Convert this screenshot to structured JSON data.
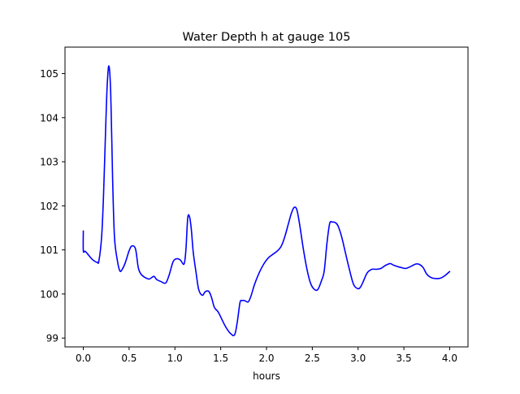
{
  "chart_data": {
    "type": "line",
    "title": "Water Depth h at gauge 105",
    "xlabel": "hours",
    "ylabel": "",
    "xlim": [
      -0.2,
      4.2
    ],
    "ylim": [
      98.8,
      105.6
    ],
    "x_ticks": [
      0.0,
      0.5,
      1.0,
      1.5,
      2.0,
      2.5,
      3.0,
      3.5,
      4.0
    ],
    "x_tick_labels": [
      "0.0",
      "0.5",
      "1.0",
      "1.5",
      "2.0",
      "2.5",
      "3.0",
      "3.5",
      "4.0"
    ],
    "y_ticks": [
      99,
      100,
      101,
      102,
      103,
      104,
      105
    ],
    "y_tick_labels": [
      "99",
      "100",
      "101",
      "102",
      "103",
      "104",
      "105"
    ],
    "grid": false,
    "legend": "none",
    "series": [
      {
        "color": "#0000ff",
        "x": [
          0.0,
          0.0,
          0.02,
          0.05,
          0.1,
          0.15,
          0.17,
          0.2,
          0.22,
          0.24,
          0.26,
          0.28,
          0.3,
          0.32,
          0.34,
          0.37,
          0.4,
          0.43,
          0.46,
          0.5,
          0.53,
          0.57,
          0.6,
          0.63,
          0.67,
          0.72,
          0.77,
          0.8,
          0.85,
          0.9,
          0.94,
          0.98,
          1.02,
          1.06,
          1.1,
          1.12,
          1.14,
          1.16,
          1.18,
          1.2,
          1.23,
          1.26,
          1.3,
          1.33,
          1.37,
          1.4,
          1.43,
          1.47,
          1.5,
          1.55,
          1.6,
          1.65,
          1.68,
          1.71,
          1.73,
          1.76,
          1.8,
          1.83,
          1.87,
          1.92,
          1.97,
          2.02,
          2.07,
          2.12,
          2.16,
          2.2,
          2.24,
          2.27,
          2.3,
          2.33,
          2.36,
          2.4,
          2.44,
          2.48,
          2.52,
          2.56,
          2.6,
          2.63,
          2.66,
          2.69,
          2.72,
          2.75,
          2.78,
          2.82,
          2.86,
          2.9,
          2.95,
          3.0,
          3.03,
          3.06,
          3.1,
          3.15,
          3.2,
          3.25,
          3.3,
          3.35,
          3.38,
          3.42,
          3.47,
          3.52,
          3.58,
          3.63,
          3.67,
          3.71,
          3.75,
          3.8,
          3.85,
          3.9,
          3.95,
          4.0
        ],
        "y": [
          101.43,
          100.98,
          100.97,
          100.9,
          100.78,
          100.72,
          100.75,
          101.3,
          102.2,
          103.5,
          104.7,
          105.17,
          104.5,
          102.6,
          101.3,
          100.78,
          100.52,
          100.58,
          100.72,
          100.98,
          101.09,
          101.02,
          100.6,
          100.45,
          100.38,
          100.34,
          100.4,
          100.33,
          100.28,
          100.25,
          100.45,
          100.73,
          100.8,
          100.77,
          100.68,
          101.0,
          101.72,
          101.75,
          101.45,
          100.95,
          100.5,
          100.1,
          99.97,
          100.05,
          100.06,
          99.92,
          99.7,
          99.6,
          99.48,
          99.27,
          99.12,
          99.07,
          99.35,
          99.8,
          99.85,
          99.85,
          99.82,
          99.95,
          100.22,
          100.48,
          100.68,
          100.82,
          100.9,
          100.98,
          101.08,
          101.3,
          101.6,
          101.82,
          101.96,
          101.92,
          101.6,
          101.05,
          100.58,
          100.25,
          100.11,
          100.1,
          100.3,
          100.52,
          101.15,
          101.6,
          101.63,
          101.62,
          101.55,
          101.3,
          100.95,
          100.6,
          100.22,
          100.12,
          100.17,
          100.3,
          100.48,
          100.56,
          100.56,
          100.58,
          100.65,
          100.69,
          100.66,
          100.63,
          100.6,
          100.58,
          100.63,
          100.68,
          100.67,
          100.6,
          100.45,
          100.37,
          100.35,
          100.36,
          100.42,
          100.51
        ]
      }
    ]
  }
}
